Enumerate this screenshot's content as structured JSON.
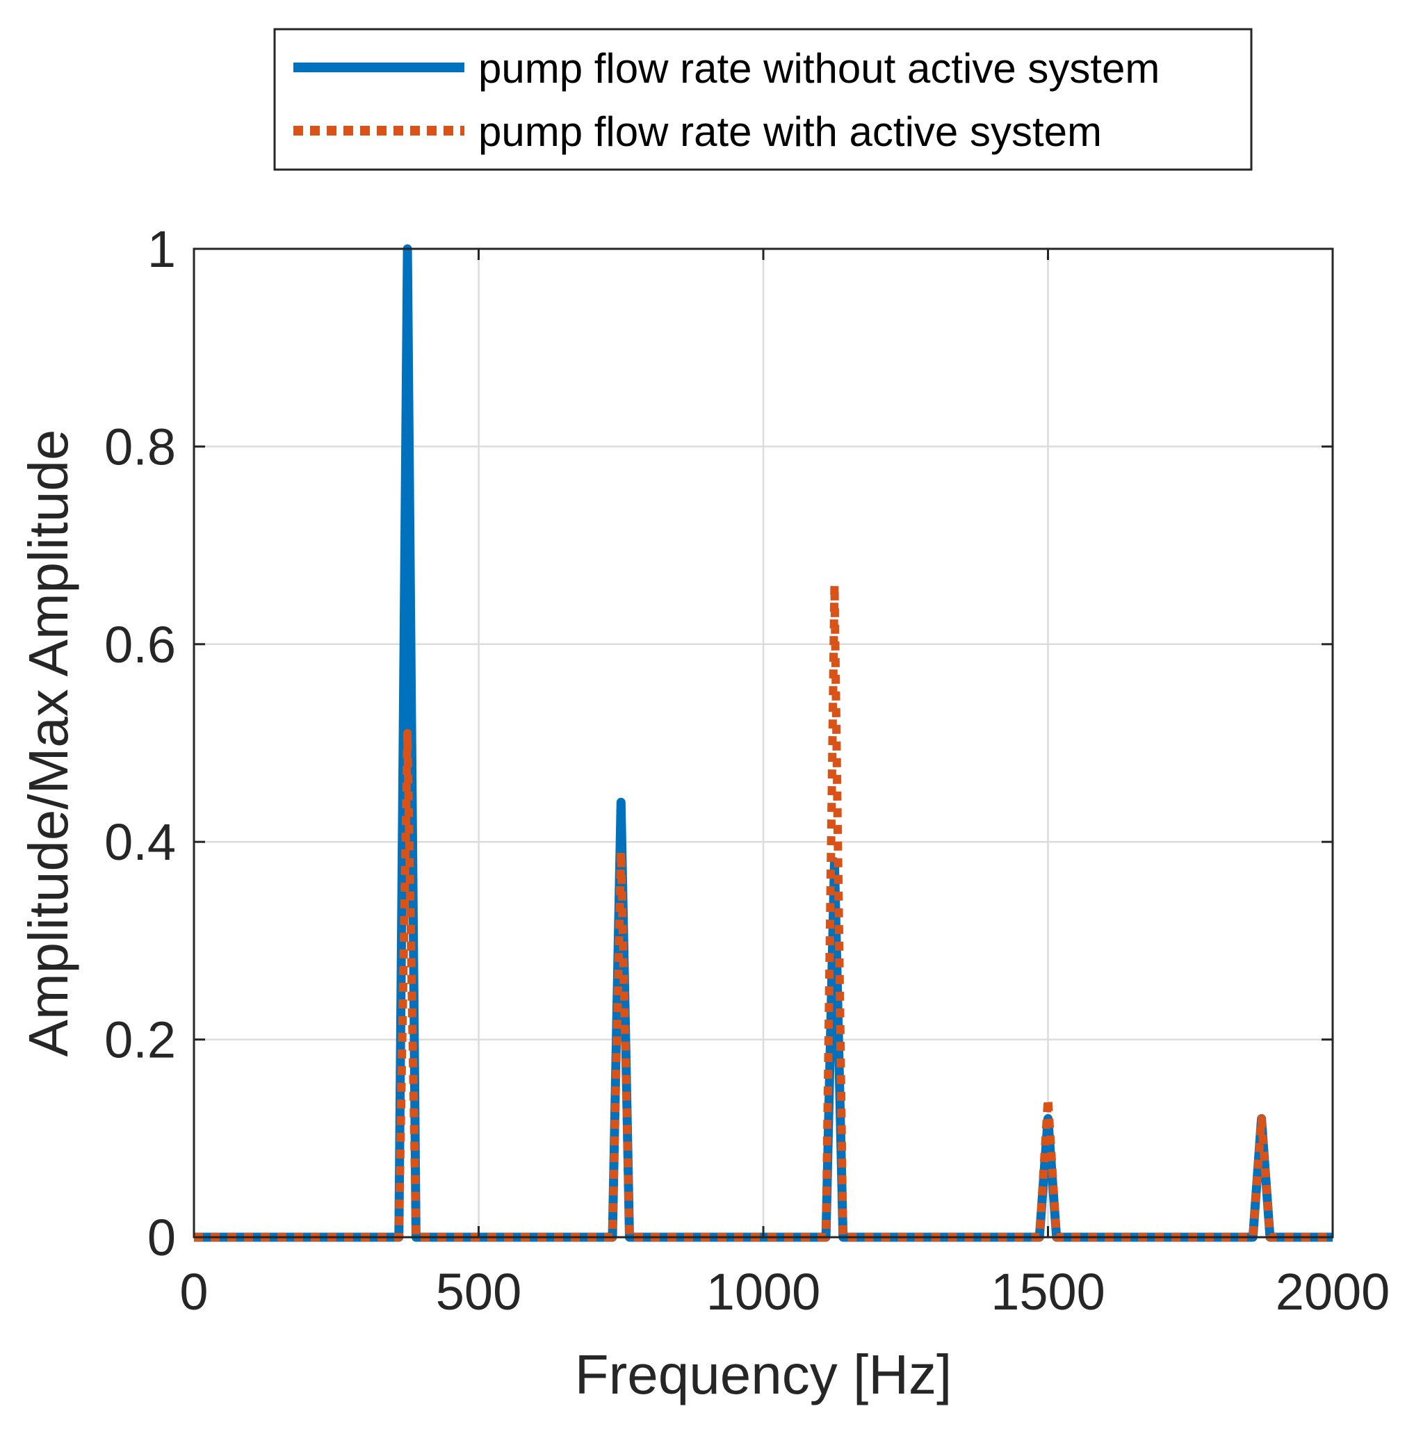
{
  "chart_data": {
    "type": "line",
    "title": "",
    "xlabel": "Frequency [Hz]",
    "ylabel": "Amplitude/Max Amplitude",
    "xlim": [
      0,
      2000
    ],
    "ylim": [
      0,
      1
    ],
    "xticks": [
      0,
      500,
      1000,
      1500,
      2000
    ],
    "yticks": [
      0,
      0.2,
      0.4,
      0.6,
      0.8,
      1
    ],
    "xtick_labels": [
      "0",
      "500",
      "1000",
      "1500",
      "2000"
    ],
    "ytick_labels": [
      "0",
      "0.2",
      "0.4",
      "0.6",
      "0.8",
      "1"
    ],
    "grid": true,
    "legend_position": "top-outside",
    "series": [
      {
        "name": "pump flow rate without active system",
        "color": "#0072BD",
        "style": "solid",
        "x": [
          0,
          360,
          375,
          390,
          735,
          750,
          765,
          1110,
          1125,
          1140,
          1485,
          1500,
          1515,
          1860,
          1875,
          1890,
          2000
        ],
        "y": [
          0,
          0,
          1.0,
          0,
          0,
          0.44,
          0,
          0,
          0.38,
          0,
          0,
          0.12,
          0,
          0,
          0.12,
          0,
          0
        ]
      },
      {
        "name": "pump flow rate with active system",
        "color": "#D95319",
        "style": "dotted",
        "x": [
          0,
          360,
          375,
          390,
          735,
          750,
          765,
          1110,
          1125,
          1140,
          1485,
          1500,
          1515,
          1860,
          1875,
          1890,
          2000
        ],
        "y": [
          0,
          0,
          0.51,
          0,
          0,
          0.39,
          0,
          0,
          0.66,
          0,
          0,
          0.14,
          0,
          0,
          0.12,
          0,
          0
        ]
      }
    ]
  }
}
